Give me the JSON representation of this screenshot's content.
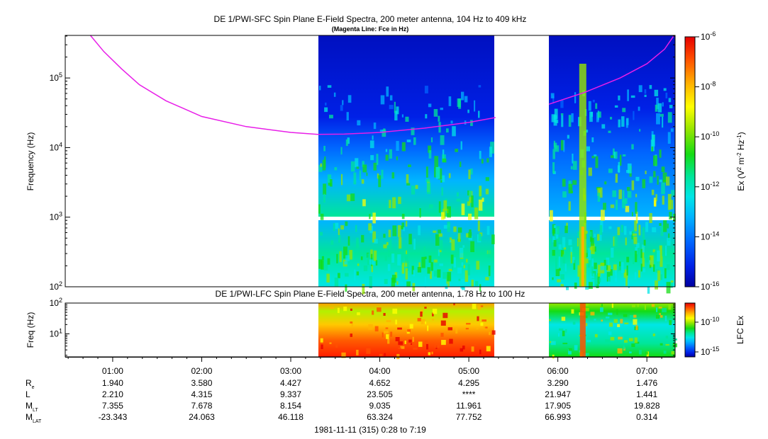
{
  "titles": {
    "main": "DE 1/PWI-SFC  Spin Plane E-Field Spectra, 200 meter antenna, 104 Hz to 409 kHz",
    "subtitle": "(Magenta Line: Fce in Hz)",
    "lower": "DE 1/PWI-LFC  Spin Plane E-Field Spectra, 200 meter antenna, 1.78 Hz to 100 Hz",
    "footer": "1981-11-11 (315) 0:28 to 7:19"
  },
  "colors": {
    "fce_line": "#e81ee8",
    "palette": [
      "#0000a0",
      "#0020e6",
      "#0066ff",
      "#00b4ff",
      "#00e6e6",
      "#00e69a",
      "#14dc14",
      "#96e600",
      "#ffff00",
      "#ffb400",
      "#ff5000",
      "#e60000"
    ]
  },
  "chart_data": [
    {
      "type": "heatmap",
      "name": "SFC",
      "ylabel": "Frequency (Hz)",
      "yscale": "log",
      "ylim": [
        100,
        409000
      ],
      "ytick_values": [
        100,
        1000,
        10000,
        100000
      ],
      "yticks": [
        {
          "base": "10",
          "exp": "2"
        },
        {
          "base": "10",
          "exp": "3"
        },
        {
          "base": "10",
          "exp": "4"
        },
        {
          "base": "10",
          "exp": "5"
        }
      ],
      "xlim_hours": [
        0.467,
        7.317
      ],
      "data_intervals_hours": [
        [
          3.32,
          5.26
        ],
        [
          5.87,
          7.317
        ]
      ],
      "dominant_level_by_band": {
        "above_fce": "1e-16 to 1e-15",
        "1kHz_to_10kHz": "1e-13 to 1e-11",
        "below_1kHz": "1e-14 to 1e-11"
      },
      "fce_curve": {
        "name": "Fce",
        "x_hours": [
          0.75,
          0.9,
          1.1,
          1.3,
          1.6,
          2.0,
          2.5,
          3.0,
          3.3,
          3.6,
          4.0,
          4.5,
          5.0,
          5.3,
          5.9,
          6.3,
          6.7,
          7.0,
          7.2,
          7.3
        ],
        "y_hz": [
          409000,
          240000,
          135000,
          80000,
          47000,
          28000,
          20000,
          16500,
          15500,
          15600,
          16500,
          19000,
          23000,
          27000,
          42000,
          62000,
          100000,
          160000,
          260000,
          400000
        ]
      },
      "colorbar": {
        "label": "Ex (V",
        "label_sup1": "2",
        "label_mid": " m",
        "label_sup2": "-2",
        "label_mid2": " Hz",
        "label_sup3": "-1",
        "label_end": ")",
        "range": [
          1e-16,
          1e-06
        ],
        "ticks": [
          {
            "base": "10",
            "exp": "-6"
          },
          {
            "base": "10",
            "exp": "-8"
          },
          {
            "base": "10",
            "exp": "-10"
          },
          {
            "base": "10",
            "exp": "-12"
          },
          {
            "base": "10",
            "exp": "-14"
          },
          {
            "base": "10",
            "exp": "-16"
          }
        ]
      }
    },
    {
      "type": "heatmap",
      "name": "LFC",
      "ylabel": "Freq (Hz)",
      "yscale": "log",
      "ylim": [
        1.78,
        100
      ],
      "ytick_values": [
        10,
        100
      ],
      "yticks": [
        {
          "base": "10",
          "exp": "1"
        },
        {
          "base": "10",
          "exp": "2"
        }
      ],
      "data_intervals_hours": [
        [
          3.32,
          5.26
        ],
        [
          5.87,
          7.317
        ]
      ],
      "colorbar": {
        "label": "LFC Ex",
        "ticks": [
          {
            "base": "10",
            "exp": "-10"
          },
          {
            "base": "10",
            "exp": "-15"
          }
        ]
      }
    }
  ],
  "time_axis": {
    "ticks": [
      "01:00",
      "02:00",
      "03:00",
      "04:00",
      "05:00",
      "06:00",
      "07:00"
    ],
    "rows": [
      {
        "label": "R",
        "sub": "e",
        "values": [
          "1.940",
          "3.580",
          "4.427",
          "4.652",
          "4.295",
          "3.290",
          "1.476"
        ]
      },
      {
        "label": "L",
        "sub": "",
        "values": [
          "2.210",
          "4.315",
          "9.337",
          "23.505",
          "****",
          "21.947",
          "1.441"
        ]
      },
      {
        "label": "M",
        "sub": "LT",
        "values": [
          "7.355",
          "7.678",
          "8.154",
          "9.035",
          "11.961",
          "17.905",
          "19.828"
        ]
      },
      {
        "label": "M",
        "sub": "LAT",
        "values": [
          "-23.343",
          "24.063",
          "46.118",
          "63.324",
          "77.752",
          "66.993",
          "0.314"
        ]
      }
    ]
  }
}
